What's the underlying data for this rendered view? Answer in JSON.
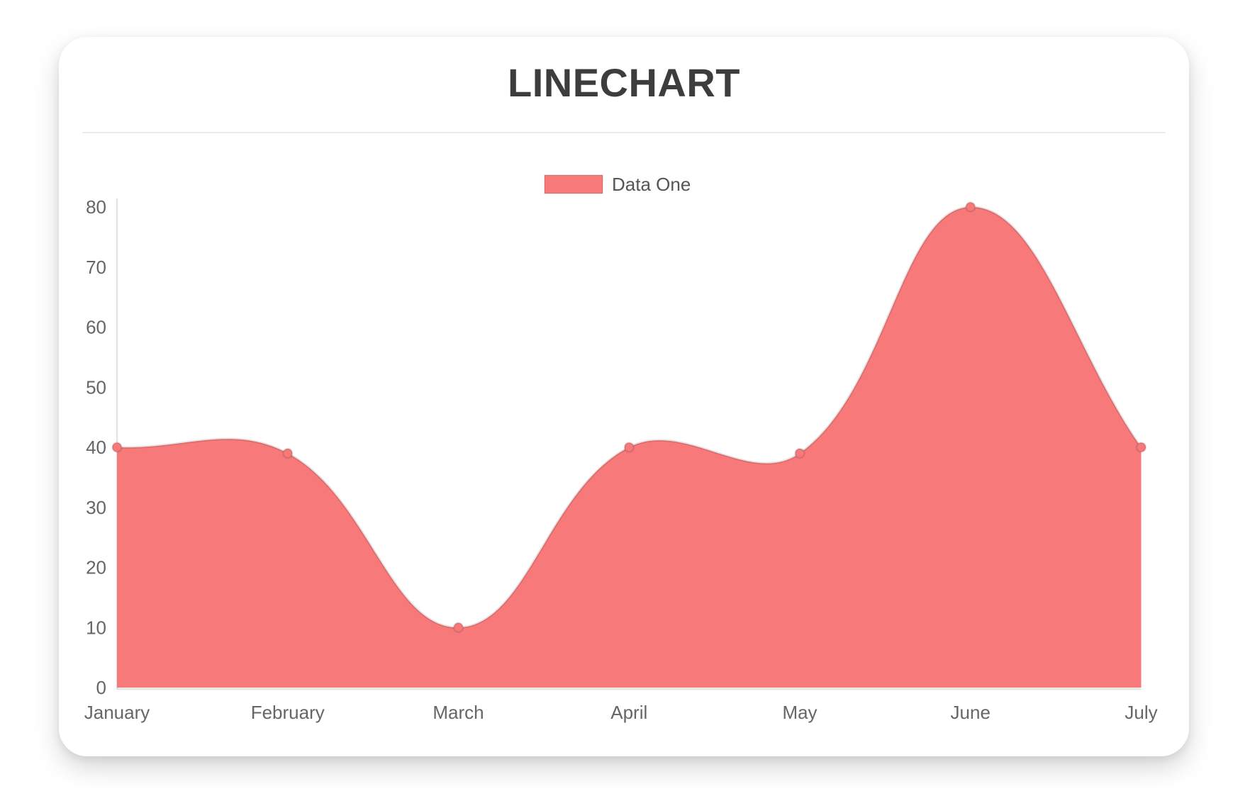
{
  "card": {
    "title": "LINECHART"
  },
  "chart_data": {
    "type": "area",
    "title": "LINECHART",
    "categories": [
      "January",
      "February",
      "March",
      "April",
      "May",
      "June",
      "July"
    ],
    "series": [
      {
        "name": "Data One",
        "values": [
          40,
          39,
          10,
          40,
          39,
          80,
          40
        ],
        "fill_color": "#f87979",
        "line_color": "rgba(0,0,0,0.10)",
        "point_color": "#f87979"
      }
    ],
    "xlabel": "",
    "ylabel": "",
    "ylim": [
      0,
      80
    ],
    "y_ticks": [
      0,
      10,
      20,
      30,
      40,
      50,
      60,
      70,
      80
    ],
    "grid": false,
    "smooth": true,
    "line_tension": 0.4,
    "legend_position": "top",
    "axis_line_color": "rgba(0,0,0,0.10)",
    "axis_label_color": "#666666",
    "legend_label_color": "#555555",
    "title_color": "#3d3d3d"
  }
}
